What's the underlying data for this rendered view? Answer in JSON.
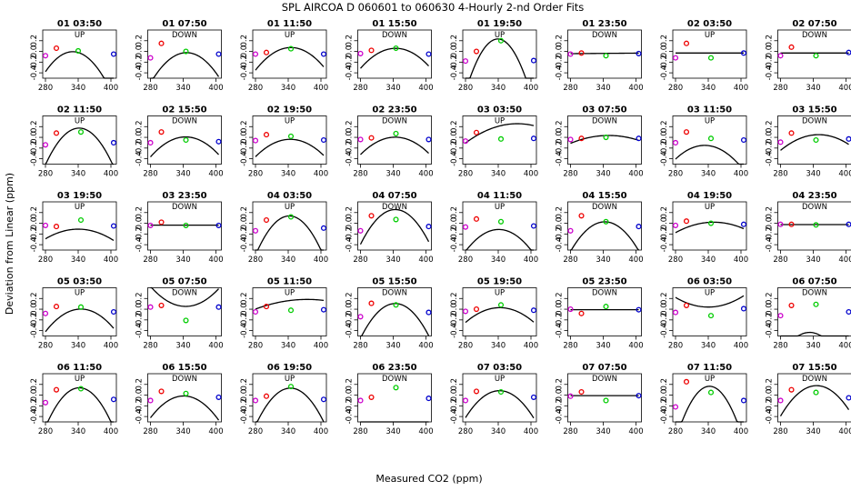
{
  "chart_data": {
    "type": "scatter",
    "title": "SPL   AIRCOA D   060601 to 060630   4-Hourly 2-nd Order Fits",
    "xlabel": "Measured CO2 (ppm)",
    "ylabel": "Deviation from Linear (ppm)",
    "xlim": [
      275,
      410
    ],
    "ylim": [
      -0.5,
      0.4
    ],
    "xticks": [
      "280",
      "340",
      "400"
    ],
    "yticks": [
      "-0.4",
      "-0.2",
      "0.0",
      "0.2"
    ],
    "ytick_values": [
      -0.4,
      -0.2,
      0,
      0.2
    ],
    "xtick_values": [
      280,
      340,
      400
    ],
    "grid": false,
    "colors": {
      "low": "#cc00cc",
      "mid1": "#ee0000",
      "mid2": "#00cc00",
      "high": "#0000cc",
      "fit": "#000000"
    },
    "panels": [
      {
        "label": "01 03:50",
        "dir": "UP",
        "points": [
          [
            280,
            -0.08
          ],
          [
            300,
            0.06
          ],
          [
            340,
            0.01
          ],
          [
            405,
            -0.05
          ]
        ],
        "fit": [
          -0.00015,
          0.099,
          -16.34
        ]
      },
      {
        "label": "01 07:50",
        "dir": "DOWN",
        "points": [
          [
            280,
            -0.12
          ],
          [
            300,
            0.15
          ],
          [
            345,
            0.0
          ],
          [
            405,
            -0.05
          ]
        ],
        "fit": [
          -0.00013,
          0.09,
          -15.6
        ]
      },
      {
        "label": "01 11:50",
        "dir": "UP",
        "points": [
          [
            280,
            -0.05
          ],
          [
            300,
            -0.02
          ],
          [
            345,
            0.05
          ],
          [
            405,
            -0.05
          ]
        ],
        "fit": [
          -0.0001,
          0.069,
          -11.83
        ]
      },
      {
        "label": "01 15:50",
        "dir": "DOWN",
        "points": [
          [
            280,
            -0.04
          ],
          [
            300,
            0.02
          ],
          [
            345,
            0.06
          ],
          [
            405,
            -0.05
          ]
        ],
        "fit": [
          -9e-05,
          0.062,
          -10.62
        ]
      },
      {
        "label": "01 19:50",
        "dir": "UP",
        "points": [
          [
            280,
            -0.18
          ],
          [
            300,
            0.0
          ],
          [
            345,
            0.2
          ],
          [
            405,
            -0.17
          ]
        ],
        "fit": [
          -0.00028,
          0.19,
          -32.0
        ]
      },
      {
        "label": "01 23:50",
        "dir": "DOWN",
        "points": [
          [
            280,
            -0.05
          ],
          [
            300,
            -0.03
          ],
          [
            345,
            -0.08
          ],
          [
            405,
            -0.04
          ]
        ],
        "fit": [
          0,
          8e-05,
          -0.064
        ]
      },
      {
        "label": "02 03:50",
        "dir": "UP",
        "points": [
          [
            280,
            -0.12
          ],
          [
            300,
            0.15
          ],
          [
            345,
            -0.12
          ],
          [
            405,
            -0.03
          ]
        ],
        "fit": [
          0,
          0,
          -0.03
        ]
      },
      {
        "label": "02 07:50",
        "dir": "DOWN",
        "points": [
          [
            280,
            -0.08
          ],
          [
            300,
            0.08
          ],
          [
            345,
            -0.08
          ],
          [
            405,
            -0.02
          ]
        ],
        "fit": [
          0,
          0,
          -0.03
        ]
      },
      {
        "label": "02 11:50",
        "dir": "UP",
        "points": [
          [
            280,
            -0.14
          ],
          [
            300,
            0.08
          ],
          [
            345,
            0.1
          ],
          [
            405,
            -0.1
          ]
        ],
        "fit": [
          -0.00018,
          0.123,
          -20.84
        ]
      },
      {
        "label": "02 15:50",
        "dir": "DOWN",
        "points": [
          [
            280,
            -0.1
          ],
          [
            300,
            0.1
          ],
          [
            345,
            -0.05
          ],
          [
            405,
            -0.08
          ]
        ],
        "fit": [
          -9e-05,
          0.062,
          -10.67
        ]
      },
      {
        "label": "02 19:50",
        "dir": "UP",
        "points": [
          [
            280,
            -0.06
          ],
          [
            300,
            0.05
          ],
          [
            345,
            0.02
          ],
          [
            405,
            -0.05
          ]
        ],
        "fit": [
          -8e-05,
          0.055,
          -9.49
        ]
      },
      {
        "label": "02 23:50",
        "dir": "DOWN",
        "points": [
          [
            280,
            -0.04
          ],
          [
            300,
            -0.01
          ],
          [
            345,
            0.07
          ],
          [
            405,
            -0.04
          ]
        ],
        "fit": [
          -8e-05,
          0.055,
          -9.45
        ]
      },
      {
        "label": "03 03:50",
        "dir": "UP",
        "points": [
          [
            280,
            -0.07
          ],
          [
            300,
            0.09
          ],
          [
            345,
            -0.03
          ],
          [
            405,
            -0.02
          ]
        ],
        "fit": [
          -4e-05,
          0.03,
          -5.37
        ]
      },
      {
        "label": "03 07:50",
        "dir": "DOWN",
        "points": [
          [
            280,
            -0.04
          ],
          [
            300,
            -0.02
          ],
          [
            345,
            0.0
          ],
          [
            405,
            -0.02
          ]
        ],
        "fit": [
          -3e-05,
          0.021,
          -3.64
        ]
      },
      {
        "label": "03 11:50",
        "dir": "UP",
        "points": [
          [
            280,
            -0.1
          ],
          [
            300,
            0.1
          ],
          [
            345,
            -0.02
          ],
          [
            405,
            -0.05
          ]
        ],
        "fit": [
          -9e-05,
          0.06,
          -10.15
        ]
      },
      {
        "label": "03 15:50",
        "dir": "DOWN",
        "points": [
          [
            280,
            -0.09
          ],
          [
            300,
            0.08
          ],
          [
            345,
            -0.05
          ],
          [
            405,
            -0.03
          ]
        ],
        "fit": [
          -6e-05,
          0.042,
          -7.3
        ]
      },
      {
        "label": "03 19:50",
        "dir": "UP",
        "points": [
          [
            280,
            -0.04
          ],
          [
            300,
            -0.06
          ],
          [
            345,
            0.06
          ],
          [
            405,
            -0.05
          ]
        ],
        "fit": [
          -5e-05,
          0.034,
          -5.89
        ]
      },
      {
        "label": "03 23:50",
        "dir": "DOWN",
        "points": [
          [
            280,
            -0.04
          ],
          [
            300,
            0.02
          ],
          [
            345,
            -0.04
          ],
          [
            405,
            -0.04
          ]
        ],
        "fit": [
          0,
          0,
          -0.035
        ]
      },
      {
        "label": "04 03:50",
        "dir": "UP",
        "points": [
          [
            280,
            -0.14
          ],
          [
            300,
            0.06
          ],
          [
            345,
            0.12
          ],
          [
            405,
            -0.09
          ]
        ],
        "fit": [
          -0.00019,
          0.13,
          -22.1
        ]
      },
      {
        "label": "04 07:50",
        "dir": "DOWN",
        "points": [
          [
            280,
            -0.14
          ],
          [
            300,
            0.14
          ],
          [
            345,
            0.07
          ],
          [
            405,
            -0.06
          ]
        ],
        "fit": [
          -0.00016,
          0.11,
          -18.65
        ]
      },
      {
        "label": "04 11:50",
        "dir": "UP",
        "points": [
          [
            280,
            -0.07
          ],
          [
            300,
            0.08
          ],
          [
            345,
            0.03
          ],
          [
            405,
            -0.05
          ]
        ],
        "fit": [
          -0.00011,
          0.075,
          -12.9
        ]
      },
      {
        "label": "04 15:50",
        "dir": "DOWN",
        "points": [
          [
            280,
            -0.14
          ],
          [
            300,
            0.14
          ],
          [
            345,
            0.03
          ],
          [
            405,
            -0.06
          ]
        ],
        "fit": [
          -0.00014,
          0.096,
          -16.43
        ]
      },
      {
        "label": "04 19:50",
        "dir": "UP",
        "points": [
          [
            280,
            -0.04
          ],
          [
            300,
            0.04
          ],
          [
            345,
            0.0
          ],
          [
            405,
            -0.02
          ]
        ],
        "fit": [
          -4e-05,
          0.028,
          -4.88
        ]
      },
      {
        "label": "04 23:50",
        "dir": "DOWN",
        "points": [
          [
            280,
            -0.02
          ],
          [
            300,
            -0.02
          ],
          [
            345,
            -0.03
          ],
          [
            405,
            -0.02
          ]
        ],
        "fit": [
          0,
          0,
          -0.025
        ]
      },
      {
        "label": "05 03:50",
        "dir": "UP",
        "points": [
          [
            280,
            -0.08
          ],
          [
            300,
            0.05
          ],
          [
            345,
            0.04
          ],
          [
            405,
            -0.05
          ]
        ],
        "fit": [
          -0.0001,
          0.069,
          -11.9
        ]
      },
      {
        "label": "05 07:50",
        "dir": "DOWN",
        "points": [
          [
            280,
            0.04
          ],
          [
            300,
            0.07
          ],
          [
            345,
            -0.21
          ],
          [
            405,
            0.04
          ]
        ],
        "fit": [
          9e-05,
          -0.062,
          10.73
        ]
      },
      {
        "label": "05 11:50",
        "dir": "UP",
        "points": [
          [
            280,
            -0.05
          ],
          [
            300,
            0.05
          ],
          [
            345,
            -0.02
          ],
          [
            405,
            -0.01
          ]
        ],
        "fit": [
          -2e-05,
          0.015,
          -2.63
        ]
      },
      {
        "label": "05 15:50",
        "dir": "DOWN",
        "points": [
          [
            280,
            -0.14
          ],
          [
            300,
            0.11
          ],
          [
            345,
            0.08
          ],
          [
            405,
            -0.06
          ]
        ],
        "fit": [
          -0.00016,
          0.11,
          -18.8
        ]
      },
      {
        "label": "05 19:50",
        "dir": "UP",
        "points": [
          [
            280,
            -0.04
          ],
          [
            300,
            0.0
          ],
          [
            345,
            0.08
          ],
          [
            405,
            -0.02
          ]
        ],
        "fit": [
          -7e-05,
          0.048,
          -8.2
        ]
      },
      {
        "label": "05 23:50",
        "dir": "DOWN",
        "points": [
          [
            280,
            0.0
          ],
          [
            300,
            -0.08
          ],
          [
            345,
            0.05
          ],
          [
            405,
            -0.01
          ]
        ],
        "fit": [
          0,
          0,
          -0.01
        ]
      },
      {
        "label": "06 03:50",
        "dir": "UP",
        "points": [
          [
            280,
            -0.06
          ],
          [
            300,
            0.07
          ],
          [
            345,
            -0.12
          ],
          [
            405,
            0.01
          ]
        ],
        "fit": [
          5e-05,
          -0.034,
          5.82
        ]
      },
      {
        "label": "06 07:50",
        "dir": "DOWN",
        "points": [
          [
            280,
            -0.12
          ],
          [
            300,
            0.07
          ],
          [
            345,
            0.09
          ],
          [
            405,
            -0.05
          ]
        ],
        "fit": [
          -0.00015,
          0.1,
          -17.1
        ]
      },
      {
        "label": "06 11:50",
        "dir": "UP",
        "points": [
          [
            280,
            -0.14
          ],
          [
            300,
            0.1
          ],
          [
            345,
            0.12
          ],
          [
            405,
            -0.08
          ]
        ],
        "fit": [
          -0.00019,
          0.13,
          -22.1
        ]
      },
      {
        "label": "06 15:50",
        "dir": "DOWN",
        "points": [
          [
            280,
            -0.1
          ],
          [
            300,
            0.07
          ],
          [
            345,
            0.03
          ],
          [
            405,
            -0.04
          ]
        ],
        "fit": [
          -0.00011,
          0.075,
          -12.8
        ]
      },
      {
        "label": "06 19:50",
        "dir": "UP",
        "points": [
          [
            280,
            -0.1
          ],
          [
            300,
            -0.02
          ],
          [
            345,
            0.16
          ],
          [
            405,
            -0.08
          ]
        ],
        "fit": [
          -0.00017,
          0.117,
          -20.0
        ]
      },
      {
        "label": "06 23:50",
        "dir": "DOWN",
        "points": [
          [
            280,
            -0.1
          ],
          [
            300,
            -0.04
          ],
          [
            345,
            0.14
          ],
          [
            405,
            -0.06
          ]
        ],
        "fit": [
          -0.00015,
          0.1,
          -17.2
        ]
      },
      {
        "label": "07 03:50",
        "dir": "UP",
        "points": [
          [
            280,
            -0.1
          ],
          [
            300,
            0.07
          ],
          [
            345,
            0.06
          ],
          [
            405,
            -0.04
          ]
        ],
        "fit": [
          -0.00013,
          0.089,
          -15.15
        ]
      },
      {
        "label": "07 07:50",
        "dir": "DOWN",
        "points": [
          [
            280,
            -0.02
          ],
          [
            300,
            0.06
          ],
          [
            345,
            -0.1
          ],
          [
            405,
            -0.01
          ]
        ],
        "fit": [
          0,
          0,
          -0.01
        ]
      },
      {
        "label": "07 11:50",
        "dir": "UP",
        "points": [
          [
            280,
            -0.22
          ],
          [
            300,
            0.25
          ],
          [
            345,
            0.05
          ],
          [
            405,
            -0.1
          ]
        ],
        "fit": [
          -0.00026,
          0.178,
          -30.3
        ]
      },
      {
        "label": "07 15:50",
        "dir": "DOWN",
        "points": [
          [
            280,
            -0.1
          ],
          [
            300,
            0.1
          ],
          [
            345,
            0.05
          ],
          [
            405,
            -0.05
          ]
        ],
        "fit": [
          -0.00013,
          0.09,
          -15.4
        ]
      }
    ]
  }
}
